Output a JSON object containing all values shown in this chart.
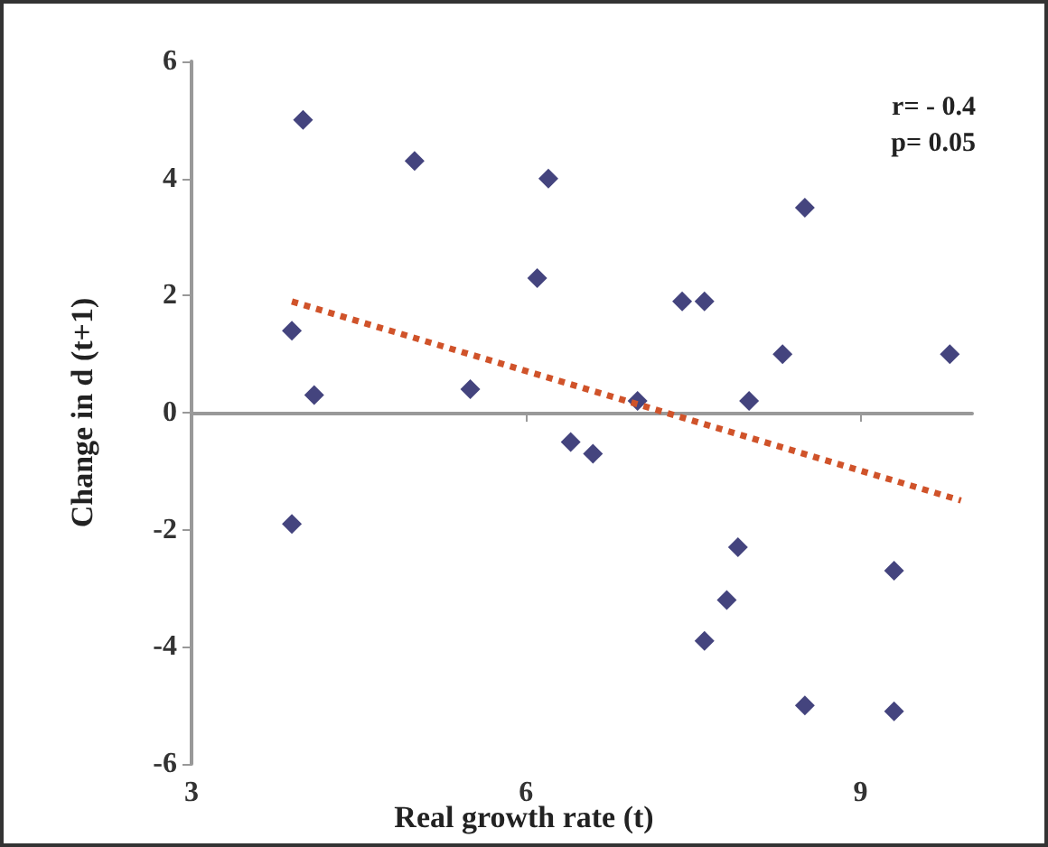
{
  "chart_data": {
    "type": "scatter",
    "xlabel": "Real growth rate (t)",
    "ylabel": "Change in d (t+1)",
    "annotations": [
      "r= - 0.4",
      "p= 0.05"
    ],
    "xlim": [
      3,
      10
    ],
    "xticks": [
      3,
      6,
      9
    ],
    "ylim": [
      -6,
      6
    ],
    "yticks": [
      -6,
      -4,
      -2,
      0,
      2,
      4,
      6
    ],
    "marker": "diamond",
    "series": [
      {
        "color": "#15155e",
        "x": [
          4.0,
          5.0,
          6.2,
          6.1,
          3.9,
          4.1,
          5.5,
          3.9,
          6.4,
          6.6,
          7.0,
          7.4,
          7.6,
          8.5,
          8.3,
          9.8,
          8.0,
          7.9,
          7.8,
          7.6,
          9.3,
          8.5,
          9.3
        ],
        "values": [
          5.0,
          4.3,
          4.0,
          2.3,
          1.4,
          0.3,
          0.4,
          -1.9,
          -0.5,
          -0.7,
          0.2,
          1.9,
          1.9,
          3.5,
          1.0,
          1.0,
          0.2,
          -2.3,
          -3.2,
          -3.9,
          -2.7,
          -5.0,
          -5.1
        ]
      },
      {
        "type": "line",
        "color": "#d0532a",
        "line_style": "dotted",
        "marker": "none",
        "x": [
          3.9,
          9.9
        ],
        "values": [
          1.9,
          -1.5
        ]
      }
    ]
  }
}
